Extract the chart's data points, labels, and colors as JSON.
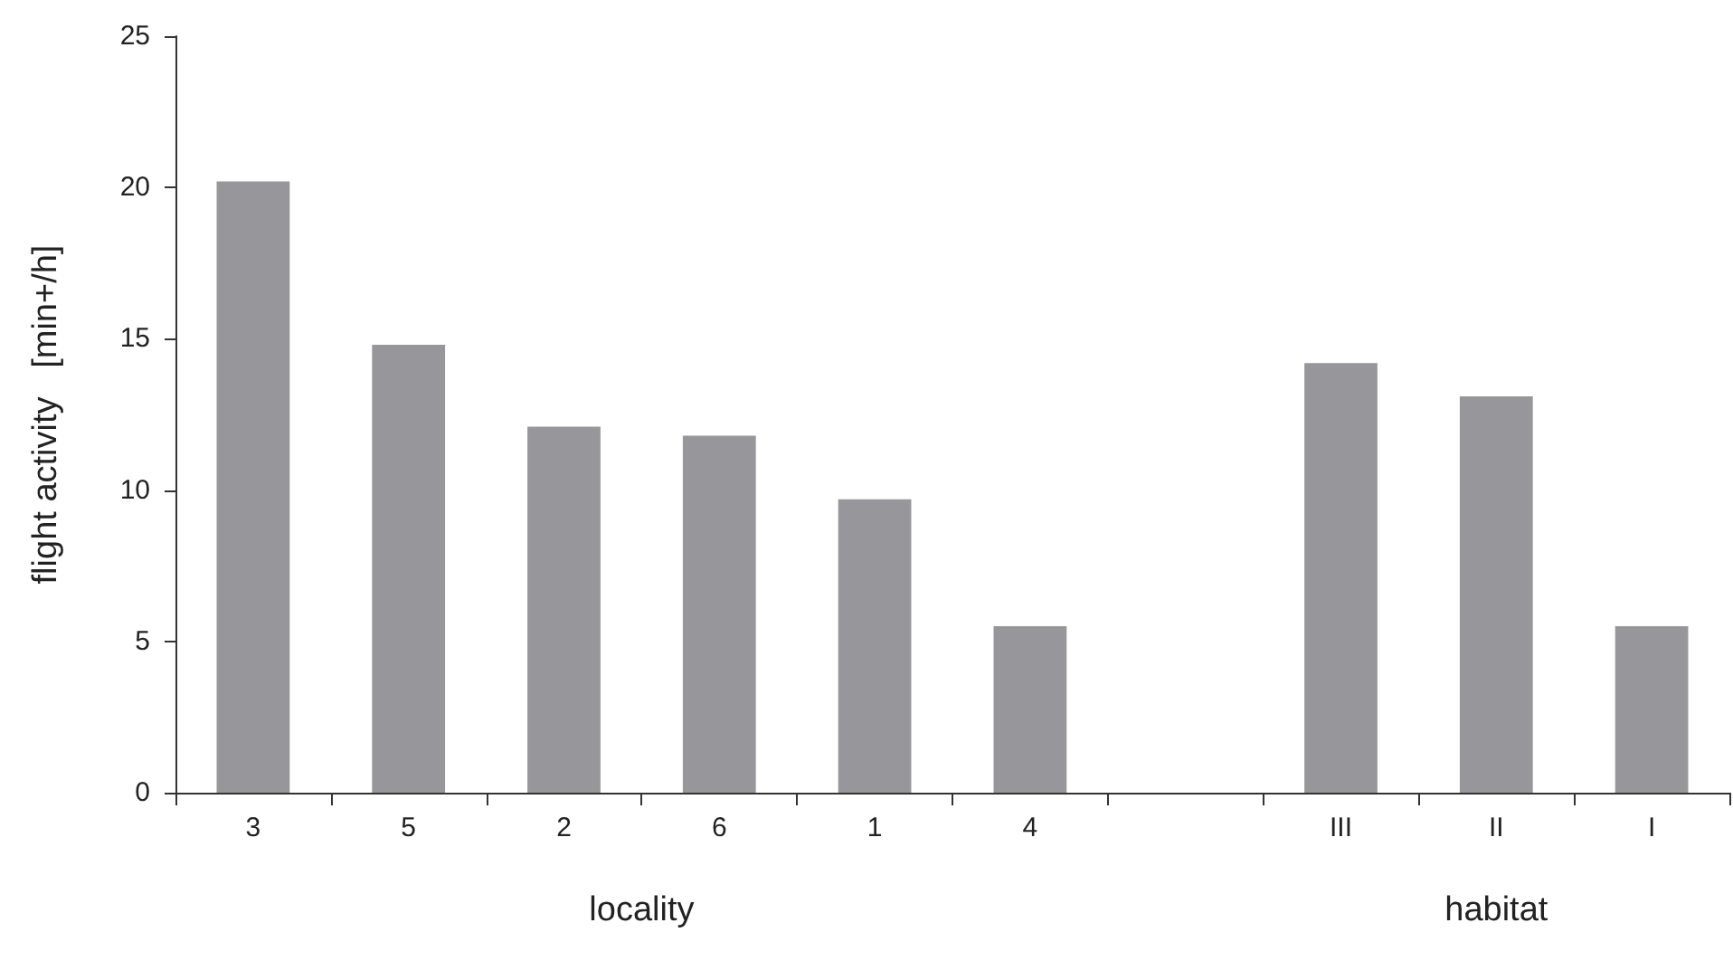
{
  "chart_data": {
    "type": "bar",
    "ylabel": "flight activity   [min+/h]",
    "categories": [
      "3",
      "5",
      "2",
      "6",
      "1",
      "4",
      null,
      "III",
      "II",
      "I"
    ],
    "values": [
      20.2,
      14.8,
      12.1,
      11.8,
      9.7,
      5.5,
      null,
      14.2,
      13.1,
      5.5
    ],
    "color": "#97979b",
    "ylim": [
      0,
      25
    ],
    "yticks": [
      0,
      5,
      10,
      15,
      20,
      25
    ],
    "grid": false,
    "annotations": [
      "locality",
      "habitat"
    ]
  }
}
